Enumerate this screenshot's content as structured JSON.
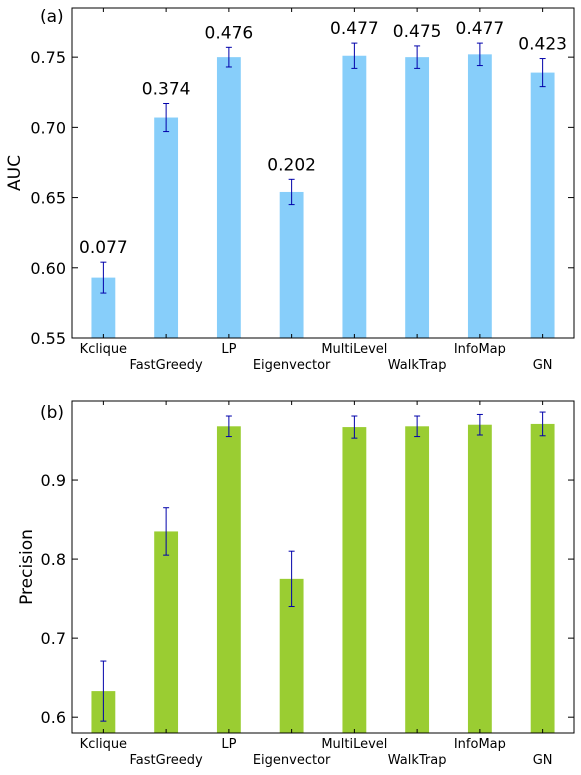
{
  "chart_data": [
    {
      "type": "bar",
      "panel_label": "(a)",
      "ylabel": "AUC",
      "categories": [
        "Kclique",
        "FastGreedy",
        "LP",
        "Eigenvector",
        "MultiLevel",
        "WalkTrap",
        "InfoMap",
        "GN"
      ],
      "values": [
        0.593,
        0.707,
        0.75,
        0.654,
        0.751,
        0.75,
        0.752,
        0.739
      ],
      "errors": [
        0.011,
        0.01,
        0.007,
        0.009,
        0.009,
        0.008,
        0.008,
        0.01
      ],
      "bar_labels": [
        "0.077",
        "0.374",
        "0.476",
        "0.202",
        "0.477",
        "0.475",
        "0.477",
        "0.423"
      ],
      "ylim": [
        0.55,
        0.785
      ],
      "yticks": [
        0.55,
        0.6,
        0.65,
        0.7,
        0.75
      ],
      "ytick_labels": [
        "0.55",
        "0.60",
        "0.65",
        "0.70",
        "0.75"
      ],
      "bar_color": "#87cefa",
      "error_color": "#0000aa",
      "grid": false
    },
    {
      "type": "bar",
      "panel_label": "(b)",
      "ylabel": "Precision",
      "categories": [
        "Kclique",
        "FastGreedy",
        "LP",
        "Eigenvector",
        "MultiLevel",
        "WalkTrap",
        "InfoMap",
        "GN"
      ],
      "values": [
        0.633,
        0.835,
        0.968,
        0.775,
        0.967,
        0.968,
        0.97,
        0.971
      ],
      "errors": [
        0.038,
        0.03,
        0.013,
        0.035,
        0.014,
        0.013,
        0.013,
        0.015
      ],
      "bar_labels": [],
      "ylim": [
        0.58,
        1.0
      ],
      "yticks": [
        0.6,
        0.7,
        0.8,
        0.9
      ],
      "ytick_labels": [
        "0.6",
        "0.7",
        "0.8",
        "0.9"
      ],
      "bar_color": "#9acd32",
      "error_color": "#0000aa",
      "grid": false
    }
  ]
}
